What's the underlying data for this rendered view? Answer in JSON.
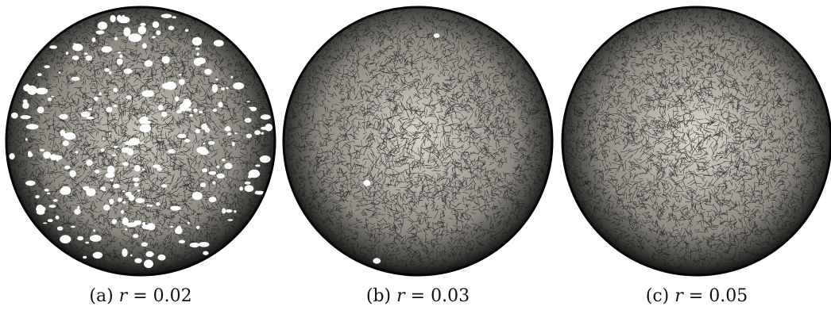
{
  "panels": [
    {
      "id": "a",
      "label": "(a)",
      "variable": "r",
      "equals": "=",
      "value": "0.02",
      "mesh_shade": "#c9c6bc",
      "holes": "many"
    },
    {
      "id": "b",
      "label": "(b)",
      "variable": "r",
      "equals": "=",
      "value": "0.03",
      "mesh_shade": "#d9d6cc",
      "holes": "few"
    },
    {
      "id": "c",
      "label": "(c)",
      "variable": "r",
      "equals": "=",
      "value": "0.05",
      "mesh_shade": "#dcd9cf",
      "holes": "none"
    }
  ]
}
